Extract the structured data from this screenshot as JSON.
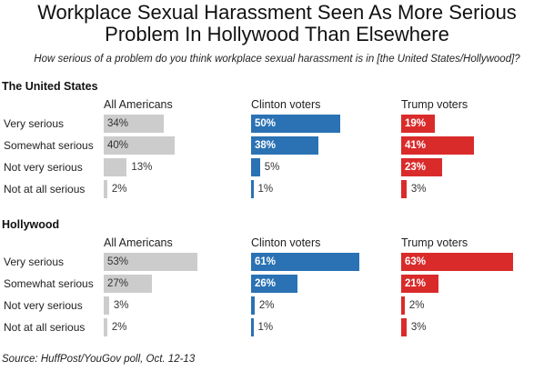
{
  "title_line1": "Workplace Sexual Harassment Seen As More Serious",
  "title_line2": "Problem In Hollywood Than Elsewhere",
  "subtitle": "How serious of a problem do you think workplace sexual harassment is in [the United States/Hollywood]?",
  "source": "Source: HuffPost/YouGov poll, Oct. 12-13",
  "colors": {
    "all_americans": "#cccccc",
    "clinton": "#2a72b4",
    "trump": "#da2b2b"
  },
  "chart_data": {
    "type": "bar",
    "title": "Workplace Sexual Harassment Seen As More Serious Problem In Hollywood Than Elsewhere",
    "categories": [
      "Very serious",
      "Somewhat serious",
      "Not very serious",
      "Not at all serious"
    ],
    "groups": [
      "All Americans",
      "Clinton voters",
      "Trump voters"
    ],
    "panels": [
      {
        "name": "The United States",
        "series": [
          {
            "name": "All Americans",
            "values": [
              34,
              40,
              13,
              2
            ]
          },
          {
            "name": "Clinton voters",
            "values": [
              50,
              38,
              5,
              1
            ]
          },
          {
            "name": "Trump voters",
            "values": [
              19,
              41,
              23,
              3
            ]
          }
        ]
      },
      {
        "name": "Hollywood",
        "series": [
          {
            "name": "All Americans",
            "values": [
              53,
              27,
              3,
              2
            ]
          },
          {
            "name": "Clinton voters",
            "values": [
              61,
              26,
              2,
              1
            ]
          },
          {
            "name": "Trump voters",
            "values": [
              63,
              21,
              2,
              3
            ]
          }
        ]
      }
    ],
    "value_suffix": "%"
  }
}
